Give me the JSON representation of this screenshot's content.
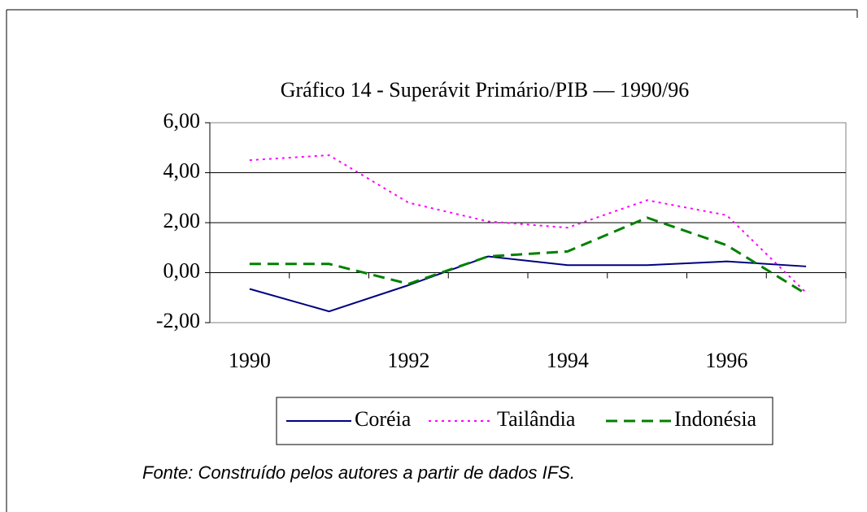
{
  "chart_data": {
    "type": "line",
    "title": "Gráfico 14 - Superávit Primário/PIB — 1990/96",
    "categories": [
      "1990",
      null,
      "1992",
      null,
      "1994",
      null,
      "1996",
      null
    ],
    "series": [
      {
        "name": "Coréia",
        "color": "#000080",
        "dash": "solid",
        "values": [
          -0.65,
          -1.55,
          -0.5,
          0.65,
          0.3,
          0.3,
          0.45,
          0.25
        ]
      },
      {
        "name": "Tailândia",
        "color": "#ff00ff",
        "dash": "dotted",
        "values": [
          4.5,
          4.7,
          2.8,
          2.05,
          1.8,
          2.9,
          2.3,
          -0.8
        ]
      },
      {
        "name": "Indonésia",
        "color": "#008000",
        "dash": "dashed",
        "values": [
          0.35,
          0.35,
          -0.45,
          0.65,
          0.85,
          2.2,
          1.1,
          -0.85
        ]
      }
    ],
    "ylim": [
      -2,
      6
    ],
    "yticks": [
      {
        "value": -2,
        "label": "-2,00"
      },
      {
        "value": 0,
        "label": "0,00"
      },
      {
        "value": 2,
        "label": "2,00"
      },
      {
        "value": 4,
        "label": "4,00"
      },
      {
        "value": 6,
        "label": "6,00"
      }
    ],
    "grid": true,
    "note": "Fonte: Construído pelos autores a partir de dados IFS."
  }
}
